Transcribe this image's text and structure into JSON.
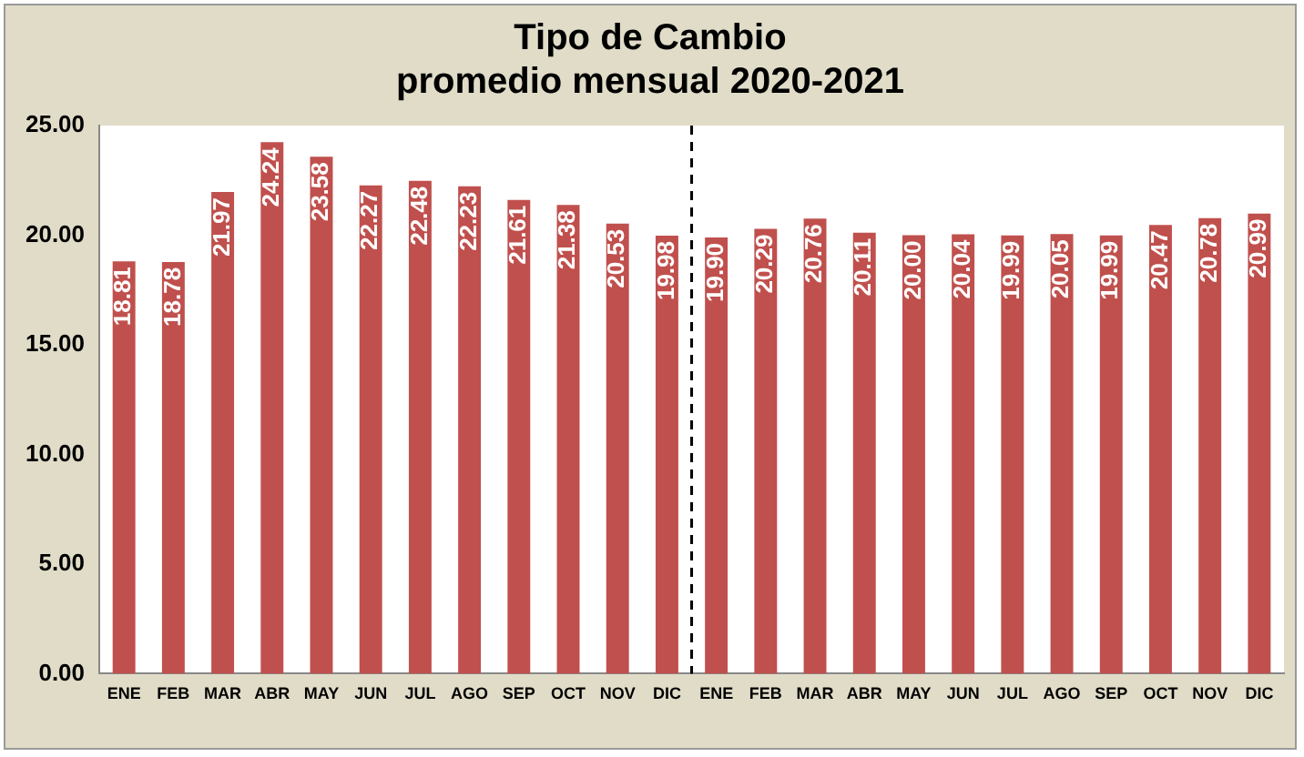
{
  "chart_data": {
    "type": "bar",
    "title": "Tipo de Cambio",
    "subtitle": "promedio mensual 2020-2021",
    "categories": [
      "ENE",
      "FEB",
      "MAR",
      "ABR",
      "MAY",
      "JUN",
      "JUL",
      "AGO",
      "SEP",
      "OCT",
      "NOV",
      "DIC",
      "ENE",
      "FEB",
      "MAR",
      "ABR",
      "MAY",
      "JUN",
      "JUL",
      "AGO",
      "SEP",
      "OCT",
      "NOV",
      "DIC"
    ],
    "values": [
      18.81,
      18.78,
      21.97,
      24.24,
      23.58,
      22.27,
      22.48,
      22.23,
      21.61,
      21.38,
      20.53,
      19.98,
      19.9,
      20.29,
      20.76,
      20.11,
      20.0,
      20.04,
      19.99,
      20.05,
      19.99,
      20.47,
      20.78,
      20.99
    ],
    "color": "#c0504d",
    "ylim": [
      0,
      25
    ],
    "yticks": [
      {
        "value": 0,
        "label": "0.00"
      },
      {
        "value": 5,
        "label": "5.00"
      },
      {
        "value": 10,
        "label": "10.00"
      },
      {
        "value": 15,
        "label": "15.00"
      },
      {
        "value": 20,
        "label": "20.00"
      },
      {
        "value": 25,
        "label": "25.00"
      }
    ],
    "value_labels": [
      "18.81",
      "18.78",
      "21.97",
      "24.24",
      "23.58",
      "22.27",
      "22.48",
      "22.23",
      "21.61",
      "21.38",
      "20.53",
      "19.98",
      "19.90",
      "20.29",
      "20.76",
      "20.11",
      "20.00",
      "20.04",
      "19.99",
      "20.05",
      "19.99",
      "20.47",
      "20.78",
      "20.99"
    ],
    "grid": false,
    "legend": false
  }
}
